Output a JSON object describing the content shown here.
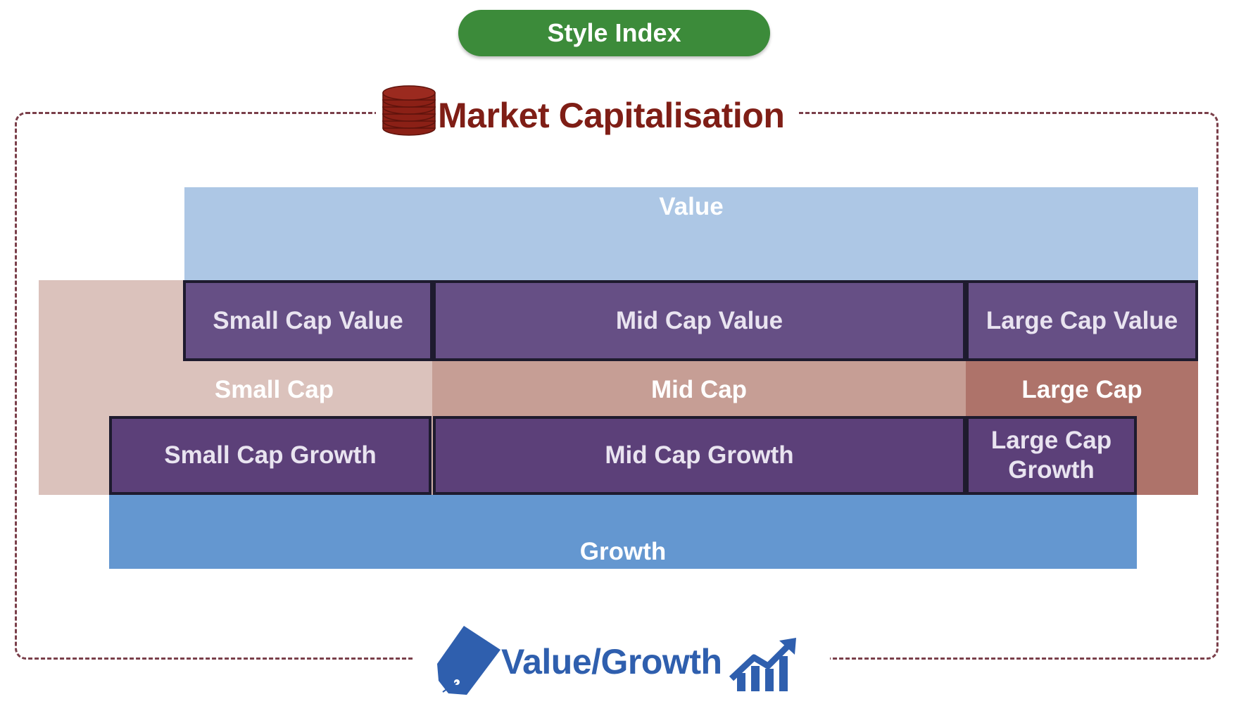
{
  "title": "Style Index",
  "market_cap_label": "Market Capitalisation",
  "value_growth_label": "Value/Growth",
  "bands": {
    "value": "Value",
    "growth": "Growth"
  },
  "cap_bands": {
    "small": "Small Cap",
    "mid": "Mid Cap",
    "large": "Large Cap"
  },
  "cells": {
    "small_value": "Small Cap Value",
    "mid_value": "Mid Cap Value",
    "large_value": "Large Cap Value",
    "small_growth": "Small Cap Growth",
    "mid_growth": "Mid Cap Growth",
    "large_growth_line1": "Large Cap",
    "large_growth_line2": "Growth"
  },
  "icons": {
    "market_cap": "coin-stack-icon",
    "value": "price-tag-icon",
    "growth": "growth-chart-icon"
  },
  "colors": {
    "title_pill": "#3c8b3a",
    "market_cap_text": "#7f1e16",
    "value_growth_text": "#2f5fae",
    "value_band": "#adc7e5",
    "growth_band": "#6497d0",
    "small_cap": "#dbc2bc",
    "mid_cap": "#c69e95",
    "large_cap": "#ae736a",
    "value_cell": "#664f85",
    "growth_cell": "#5c4079"
  }
}
